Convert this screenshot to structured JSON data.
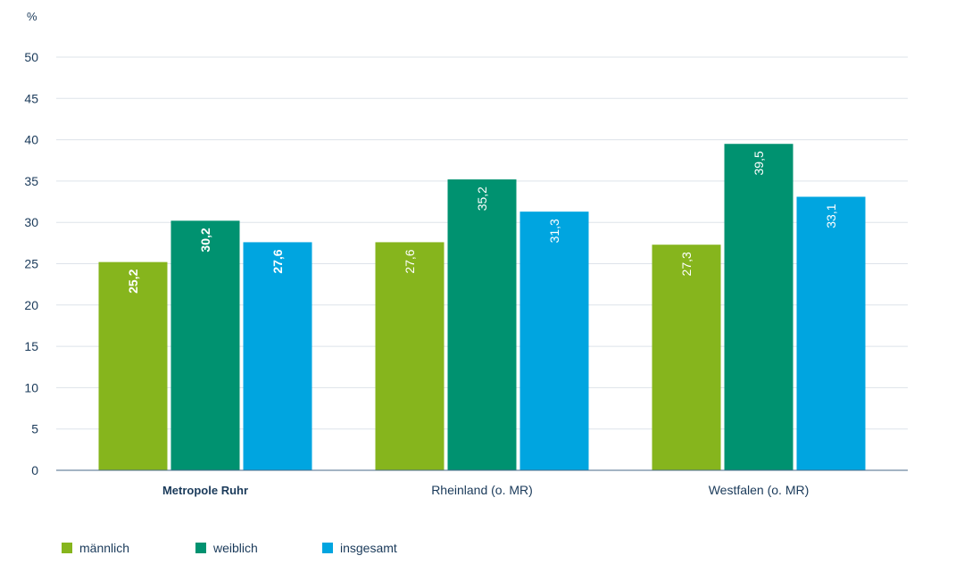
{
  "chart_data": {
    "type": "bar",
    "unit": "%",
    "ylim": [
      0,
      50
    ],
    "yticks": [
      "0",
      "5",
      "10",
      "15",
      "20",
      "25",
      "30",
      "35",
      "40",
      "45",
      "50"
    ],
    "ytick_values": [
      0,
      5,
      10,
      15,
      20,
      25,
      30,
      35,
      40,
      45,
      50
    ],
    "categories": [
      "Metropole Ruhr",
      "Rheinland (o. MR)",
      "Westfalen (o. MR)"
    ],
    "emphasized_category": "Metropole Ruhr",
    "series": [
      {
        "name": "männlich",
        "color": "#86b51d",
        "values": [
          25.2,
          27.6,
          27.3
        ],
        "labels": [
          "25,2",
          "27,6",
          "27,3"
        ]
      },
      {
        "name": "weiblich",
        "color": "#009270",
        "values": [
          30.2,
          35.2,
          39.5
        ],
        "labels": [
          "30,2",
          "35,2",
          "39,5"
        ]
      },
      {
        "name": "insgesamt",
        "color": "#00a5e0",
        "values": [
          27.6,
          31.3,
          33.1
        ],
        "labels": [
          "27,6",
          "31,3",
          "33,1"
        ]
      }
    ],
    "grid": true,
    "legend_position": "bottom-left"
  }
}
